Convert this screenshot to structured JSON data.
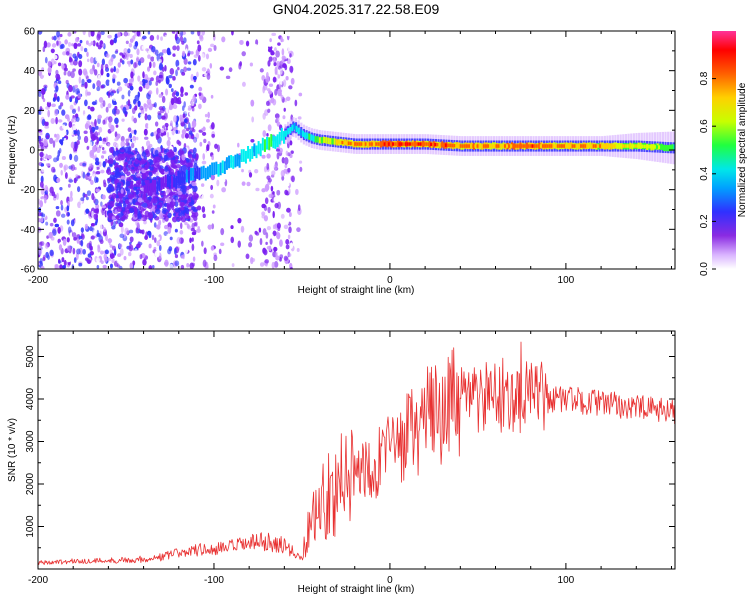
{
  "title": "GN04.2025.317.22.58.E09",
  "colors": {
    "snr_line": "#e83030",
    "frame": "#000000",
    "colormap": [
      "#ffffff",
      "#cc99ff",
      "#7a1ff0",
      "#3333ff",
      "#00a0ff",
      "#00f0f0",
      "#30ff30",
      "#d8ff00",
      "#ffd000",
      "#ff6000",
      "#ff0000",
      "#ff40a0"
    ]
  },
  "chart_data": [
    {
      "type": "heatmap",
      "name": "spectrogram",
      "xlabel": "Height of straight line (km)",
      "ylabel": "Frequency (Hz)",
      "xlim": [
        -200,
        162
      ],
      "ylim": [
        -60,
        60
      ],
      "xticks": [
        -200,
        -100,
        0,
        100
      ],
      "yticks": [
        -60,
        -40,
        -20,
        0,
        20,
        40,
        60
      ],
      "colorbar": {
        "label": "Normalized spectral amplitude",
        "range": [
          0.0,
          1.0
        ],
        "ticks": [
          0.0,
          0.2,
          0.4,
          0.6,
          0.8
        ]
      },
      "ridge": {
        "x": [
          -140,
          -125,
          -110,
          -100,
          -90,
          -80,
          -70,
          -60,
          -55,
          -50,
          -45,
          -40,
          -30,
          -20,
          -10,
          0,
          20,
          40,
          60,
          80,
          100,
          120,
          140,
          162
        ],
        "freq": [
          -20,
          -16,
          -12,
          -10,
          -6,
          -2,
          3,
          8,
          12,
          8,
          6,
          5,
          4,
          3,
          3,
          3,
          3,
          2,
          2,
          2,
          2,
          2,
          2,
          1
        ],
        "amplitude": [
          0.15,
          0.2,
          0.35,
          0.4,
          0.45,
          0.5,
          0.55,
          0.5,
          0.45,
          0.5,
          0.6,
          0.7,
          0.8,
          0.85,
          0.9,
          0.95,
          0.9,
          0.85,
          0.85,
          0.9,
          0.85,
          0.8,
          0.7,
          0.6
        ]
      }
    },
    {
      "type": "line",
      "name": "snr",
      "xlabel": "Height of straight line (km)",
      "ylabel": "SNR (10 * v/v)",
      "xlim": [
        -200,
        162
      ],
      "ylim": [
        0,
        5600
      ],
      "xticks": [
        -200,
        -100,
        0,
        100
      ],
      "yticks": [
        1000,
        2000,
        3000,
        4000,
        5000
      ],
      "series": [
        {
          "name": "SNR",
          "x": [
            -200,
            -180,
            -160,
            -140,
            -130,
            -120,
            -110,
            -100,
            -90,
            -80,
            -70,
            -60,
            -50,
            -45,
            -40,
            -35,
            -30,
            -25,
            -20,
            -10,
            0,
            10,
            20,
            30,
            40,
            50,
            60,
            70,
            80,
            90,
            100,
            110,
            120,
            130,
            140,
            150,
            162
          ],
          "values": [
            150,
            180,
            200,
            230,
            280,
            380,
            450,
            450,
            520,
            600,
            650,
            550,
            250,
            1200,
            1500,
            1800,
            1900,
            2100,
            2300,
            2500,
            2700,
            3100,
            3500,
            3800,
            3900,
            4000,
            4050,
            4100,
            4050,
            4000,
            4000,
            3950,
            3900,
            3850,
            3800,
            3750,
            3700
          ]
        }
      ]
    }
  ]
}
